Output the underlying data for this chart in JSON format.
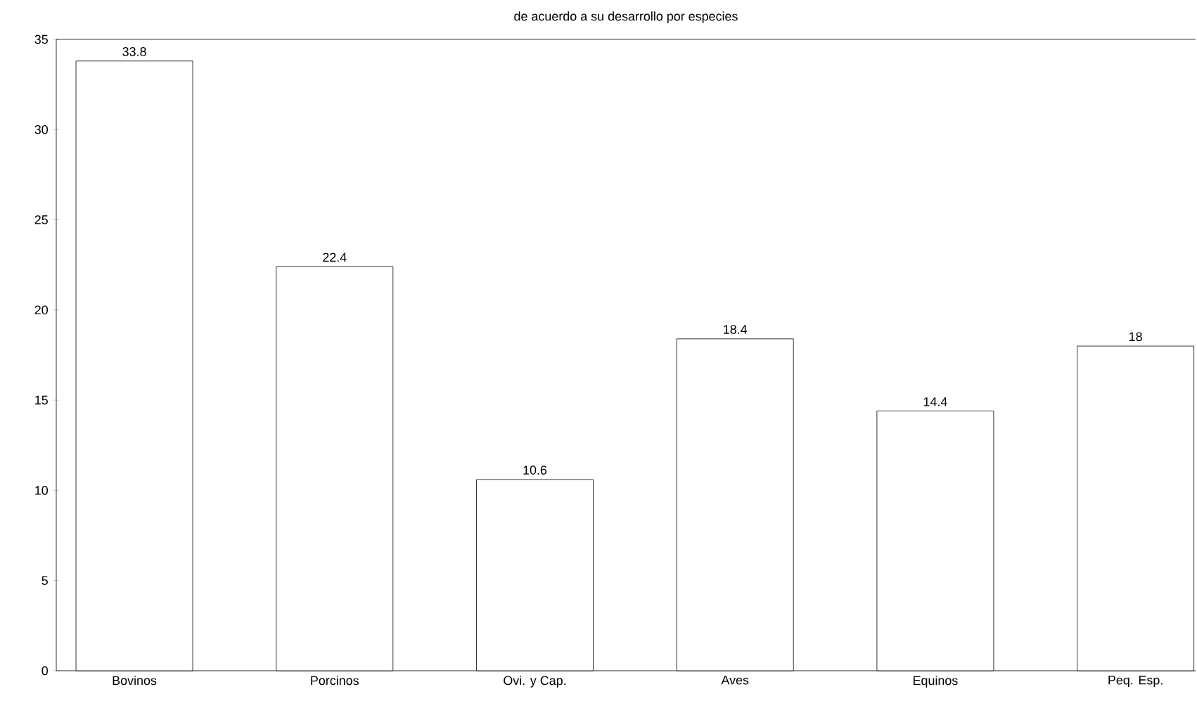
{
  "chart_data": {
    "type": "bar",
    "title": "de acuerdo a su desarrollo por especies",
    "categories": [
      "Bovinos",
      "Porcinos",
      "Ovi. y Cap.",
      "Aves",
      "Equinos",
      "Peq. Esp."
    ],
    "values": [
      33.8,
      22.4,
      10.6,
      18.4,
      14.4,
      18
    ],
    "color": "#000000",
    "data_labels": true,
    "ylim": [
      0,
      35
    ],
    "yticks": [
      0,
      5,
      10,
      15,
      20,
      25,
      30,
      35
    ]
  }
}
